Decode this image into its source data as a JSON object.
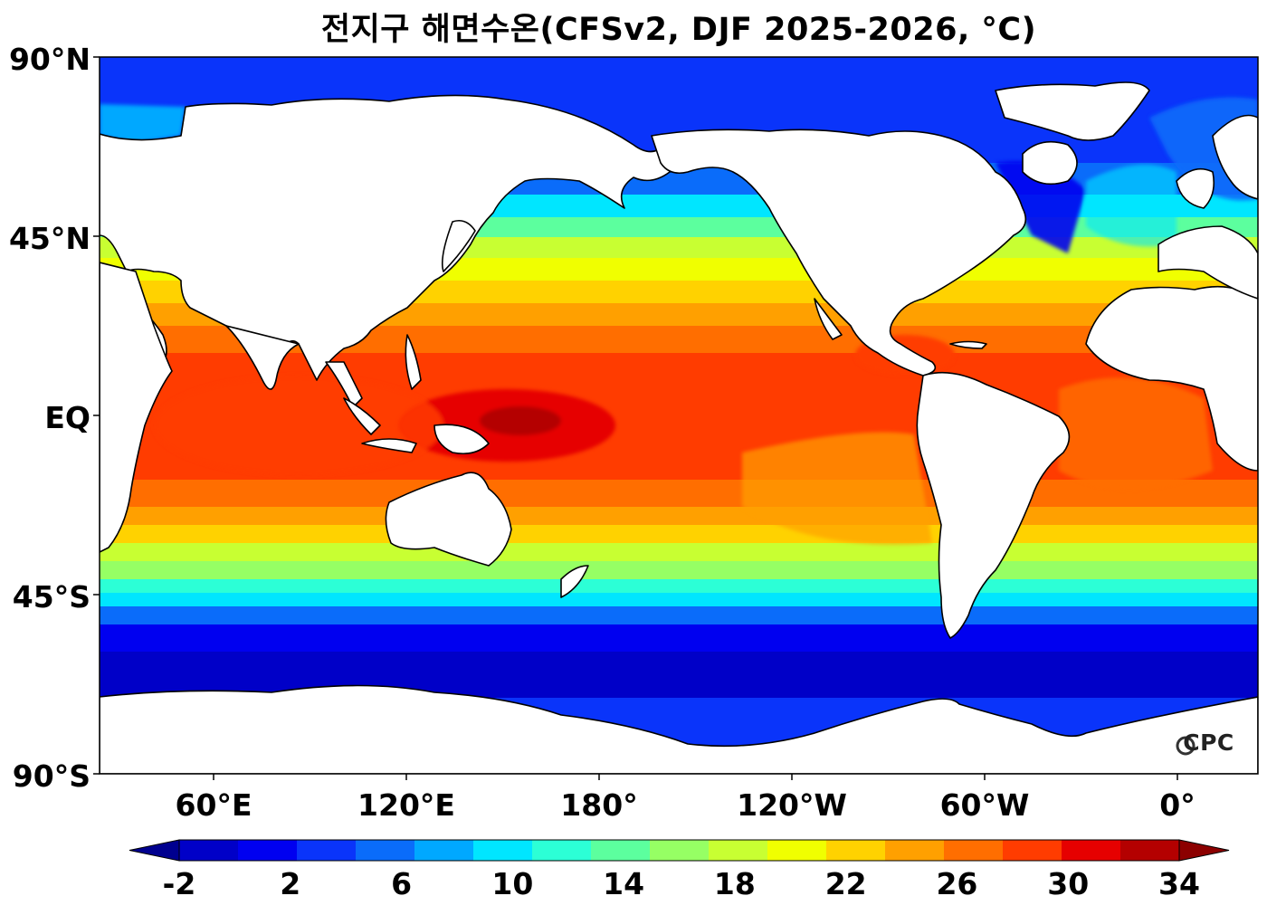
{
  "title": "전지구 해면수온(CFSv2, DJF 2025-2026, °C)",
  "logo": "CPC",
  "map": {
    "projection": "equirectangular",
    "central_longitude": "Pacific (~180°)",
    "ocean_field": "sea surface temperature",
    "land_color": "#ffffff",
    "coastline_color": "#000000",
    "lat_labels": [
      "90°N",
      "45°N",
      "EQ",
      "45°S",
      "90°S"
    ],
    "lon_labels": [
      "60°E",
      "120°E",
      "180°",
      "120°W",
      "60°W",
      "0°"
    ]
  },
  "colorbar": {
    "unit": "°C",
    "min": -2,
    "max": 34,
    "step": 2,
    "extend": "both",
    "tick_labels": [
      "-2",
      "2",
      "6",
      "10",
      "14",
      "18",
      "22",
      "26",
      "30",
      "34"
    ],
    "colors": [
      "#00008f",
      "#0000c8",
      "#0000f0",
      "#0a34fa",
      "#0a6cfa",
      "#00a8ff",
      "#00e6ff",
      "#2cffd6",
      "#5cff9e",
      "#96ff64",
      "#c8ff32",
      "#f0ff00",
      "#ffd200",
      "#ffa000",
      "#ff6e00",
      "#ff3c00",
      "#e60000",
      "#b40000",
      "#8c0000"
    ]
  }
}
